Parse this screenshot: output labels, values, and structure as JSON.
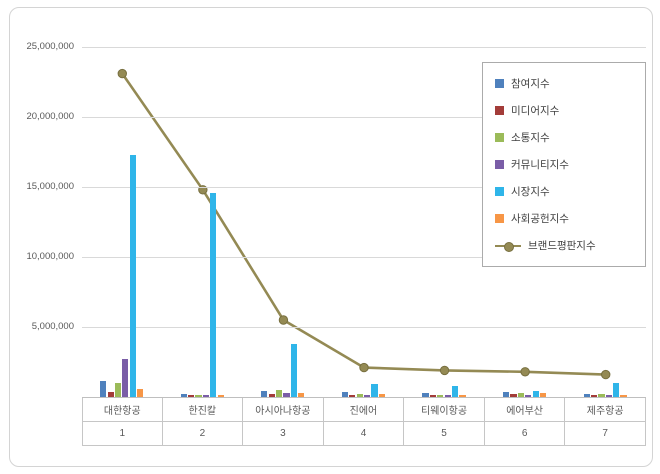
{
  "chart_data": {
    "type": "combo-bar-line",
    "title": "",
    "categories": [
      "대한항공",
      "한진칼",
      "아시아나항공",
      "진에어",
      "티웨이항공",
      "에어부산",
      "제주항공"
    ],
    "category_numbers": [
      "1",
      "2",
      "3",
      "4",
      "5",
      "6",
      "7"
    ],
    "y_axis": {
      "min": 0,
      "max": 25000000,
      "tick_interval": 5000000,
      "ticks": [
        {
          "value": 5000000,
          "label": "5,000,000"
        },
        {
          "value": 10000000,
          "label": "10,000,000"
        },
        {
          "value": 15000000,
          "label": "15,000,000"
        },
        {
          "value": 20000000,
          "label": "20,000,000"
        },
        {
          "value": 25000000,
          "label": "25,000,000"
        }
      ],
      "grid": true
    },
    "legend_position": "right-inside",
    "bar_series": [
      {
        "name": "참여지수",
        "color": "#4f81bd",
        "values": [
          1150000,
          200000,
          450000,
          350000,
          300000,
          350000,
          220000
        ]
      },
      {
        "name": "미디어지수",
        "color": "#a33c39",
        "values": [
          360000,
          120000,
          220000,
          150000,
          140000,
          200000,
          150000
        ]
      },
      {
        "name": "소통지수",
        "color": "#9bbb59",
        "values": [
          1000000,
          130000,
          500000,
          220000,
          160000,
          300000,
          200000
        ]
      },
      {
        "name": "커뮤니티지수",
        "color": "#7a5da7",
        "values": [
          2700000,
          120000,
          300000,
          160000,
          130000,
          160000,
          130000
        ]
      },
      {
        "name": "시장지수",
        "color": "#2fb5e9",
        "values": [
          17300000,
          14600000,
          3800000,
          900000,
          800000,
          420000,
          1000000
        ]
      },
      {
        "name": "사회공헌지수",
        "color": "#f79646",
        "values": [
          550000,
          120000,
          300000,
          200000,
          130000,
          300000,
          150000
        ]
      }
    ],
    "line_series": {
      "name": "브랜드평판지수",
      "color": "#948a54",
      "marker_stroke": "#776f3f",
      "values": [
        23100000,
        14800000,
        5500000,
        2100000,
        1900000,
        1800000,
        1600000
      ]
    }
  }
}
